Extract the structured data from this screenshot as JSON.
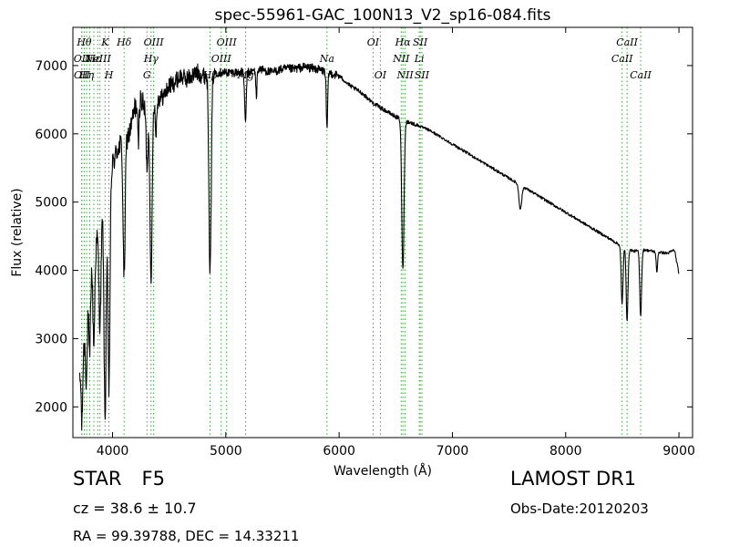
{
  "chart_data": {
    "type": "line",
    "title": "spec-55961-GAC_100N13_V2_sp16-084.fits",
    "xlabel": "Wavelength (Å)",
    "ylabel": "Flux (relative)",
    "xlim": [
      3650,
      9120
    ],
    "ylim": [
      1550,
      7560
    ],
    "x_ticks": [
      4000,
      5000,
      6000,
      7000,
      8000,
      9000
    ],
    "y_ticks": [
      2000,
      3000,
      4000,
      5000,
      6000,
      7000
    ],
    "grid": false,
    "line_color": "#000000",
    "marker_color": "#33aa33",
    "continuum": [
      [
        3710,
        2350
      ],
      [
        3760,
        3050
      ],
      [
        3800,
        3950
      ],
      [
        3850,
        4350
      ],
      [
        3900,
        4800
      ],
      [
        3950,
        5100
      ],
      [
        4000,
        5550
      ],
      [
        4050,
        5800
      ],
      [
        4100,
        5900
      ],
      [
        4150,
        6000
      ],
      [
        4200,
        6400
      ],
      [
        4250,
        6500
      ],
      [
        4300,
        6300
      ],
      [
        4350,
        6450
      ],
      [
        4400,
        6500
      ],
      [
        4450,
        6550
      ],
      [
        4500,
        6700
      ],
      [
        4550,
        6750
      ],
      [
        4600,
        6850
      ],
      [
        4650,
        6800
      ],
      [
        4700,
        6850
      ],
      [
        4750,
        6900
      ],
      [
        4800,
        6850
      ],
      [
        4900,
        6900
      ],
      [
        5000,
        6900
      ],
      [
        5100,
        6900
      ],
      [
        5200,
        6900
      ],
      [
        5300,
        6950
      ],
      [
        5400,
        6900
      ],
      [
        5500,
        6950
      ],
      [
        5600,
        6950
      ],
      [
        5700,
        6980
      ],
      [
        5800,
        6950
      ],
      [
        5900,
        6900
      ],
      [
        6000,
        6850
      ],
      [
        6100,
        6700
      ],
      [
        6200,
        6600
      ],
      [
        6300,
        6450
      ],
      [
        6400,
        6350
      ],
      [
        6500,
        6250
      ],
      [
        6600,
        6180
      ],
      [
        6700,
        6120
      ],
      [
        6800,
        6050
      ],
      [
        6900,
        5950
      ],
      [
        7000,
        5850
      ],
      [
        7200,
        5650
      ],
      [
        7400,
        5450
      ],
      [
        7600,
        5250
      ],
      [
        7800,
        5050
      ],
      [
        8000,
        4850
      ],
      [
        8200,
        4650
      ],
      [
        8400,
        4450
      ],
      [
        8500,
        4350
      ],
      [
        8600,
        4280
      ],
      [
        8700,
        4300
      ],
      [
        8800,
        4270
      ],
      [
        8900,
        4250
      ],
      [
        8960,
        4300
      ],
      [
        9000,
        3950
      ]
    ],
    "absorption_lines": [
      {
        "x": 3730,
        "depth": 900,
        "width": 6
      },
      {
        "x": 3770,
        "depth": 900,
        "width": 7
      },
      {
        "x": 3798,
        "depth": 1200,
        "width": 7
      },
      {
        "x": 3835,
        "depth": 1300,
        "width": 8
      },
      {
        "x": 3889,
        "depth": 1500,
        "width": 9
      },
      {
        "x": 3934,
        "depth": 3200,
        "width": 9
      },
      {
        "x": 3968,
        "depth": 3000,
        "width": 9
      },
      {
        "x": 4102,
        "depth": 2000,
        "width": 9
      },
      {
        "x": 4227,
        "depth": 600,
        "width": 6
      },
      {
        "x": 4305,
        "depth": 800,
        "width": 8
      },
      {
        "x": 4340,
        "depth": 2700,
        "width": 9
      },
      {
        "x": 4383,
        "depth": 500,
        "width": 6
      },
      {
        "x": 4861,
        "depth": 2900,
        "width": 10
      },
      {
        "x": 5173,
        "depth": 750,
        "width": 7
      },
      {
        "x": 5270,
        "depth": 400,
        "width": 5
      },
      {
        "x": 5893,
        "depth": 850,
        "width": 6
      },
      {
        "x": 6563,
        "depth": 2200,
        "width": 10
      },
      {
        "x": 7600,
        "depth": 350,
        "width": 12
      },
      {
        "x": 8498,
        "depth": 850,
        "width": 8
      },
      {
        "x": 8542,
        "depth": 1050,
        "width": 8
      },
      {
        "x": 8662,
        "depth": 950,
        "width": 8
      },
      {
        "x": 8805,
        "depth": 300,
        "width": 6
      }
    ],
    "line_markers": [
      {
        "x": 3727,
        "label": "OII",
        "row": 1
      },
      {
        "x": 3729,
        "label": "OII",
        "row": 2
      },
      {
        "x": 3750,
        "label": "Hθ",
        "row": 0
      },
      {
        "x": 3771,
        "label": "Hη",
        "row": 2
      },
      {
        "x": 3798,
        "label": "",
        "row": 0
      },
      {
        "x": 3835,
        "label": "Hε",
        "row": 1
      },
      {
        "x": 3869,
        "label": "NeIII",
        "row": 1
      },
      {
        "x": 3889,
        "label": "",
        "row": 0
      },
      {
        "x": 3934,
        "label": "K",
        "row": 0
      },
      {
        "x": 3968,
        "label": "H",
        "row": 2
      },
      {
        "x": 4102,
        "label": "Hδ",
        "row": 0
      },
      {
        "x": 4304,
        "label": "G",
        "row": 2
      },
      {
        "x": 4340,
        "label": "Hγ",
        "row": 1
      },
      {
        "x": 4363,
        "label": "OIII",
        "row": 0
      },
      {
        "x": 4861,
        "label": "Hβ",
        "row": 2
      },
      {
        "x": 4959,
        "label": "OIII",
        "row": 1
      },
      {
        "x": 5007,
        "label": "OIII",
        "row": 0
      },
      {
        "x": 5175,
        "label": "Mg",
        "row": 2
      },
      {
        "x": 5893,
        "label": "Na",
        "row": 1
      },
      {
        "x": 6300,
        "label": "OI",
        "row": 0
      },
      {
        "x": 6364,
        "label": "OI",
        "row": 2
      },
      {
        "x": 6548,
        "label": "NII",
        "row": 1
      },
      {
        "x": 6563,
        "label": "Hα",
        "row": 0
      },
      {
        "x": 6583,
        "label": "NII",
        "row": 2
      },
      {
        "x": 6708,
        "label": "Li",
        "row": 1
      },
      {
        "x": 6716,
        "label": "SII",
        "row": 0
      },
      {
        "x": 6731,
        "label": "SII",
        "row": 2
      },
      {
        "x": 8498,
        "label": "CaII",
        "row": 1
      },
      {
        "x": 8542,
        "label": "CaII",
        "row": 0
      },
      {
        "x": 8662,
        "label": "CaII",
        "row": 2
      }
    ]
  },
  "info": {
    "object_type": "STAR",
    "subclass": "F5",
    "cz_text": "cz = 38.6  ± 10.7",
    "radec_text": "RA = 99.39788, DEC = 14.33211",
    "survey": "LAMOST DR1",
    "obs_date": "Obs-Date:20120203"
  }
}
